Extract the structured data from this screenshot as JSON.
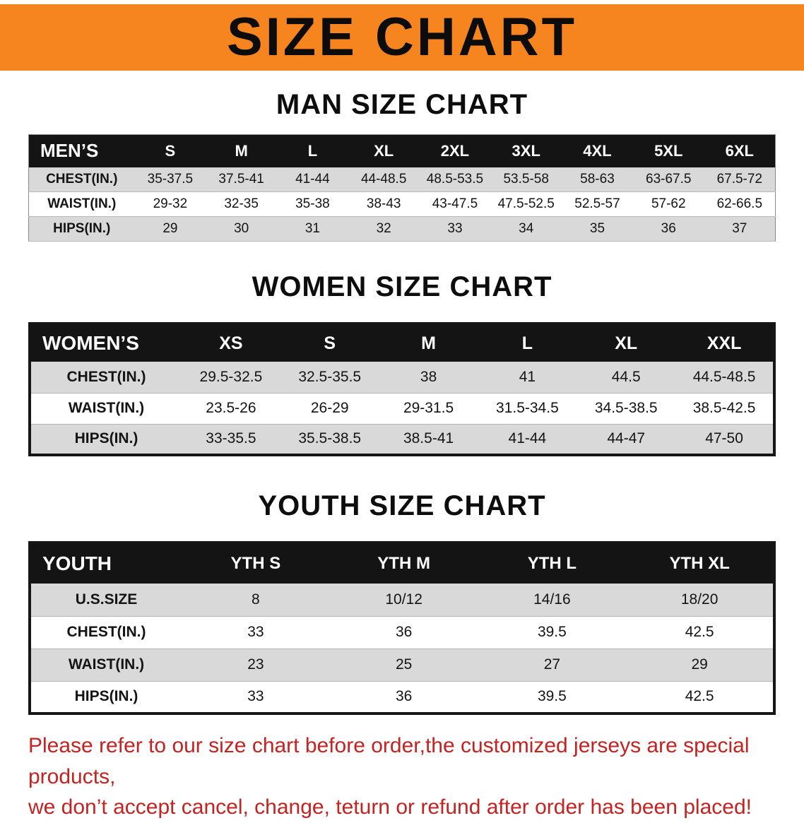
{
  "banner": {
    "title": "SIZE CHART"
  },
  "colors": {
    "banner_bg": "#F6851F",
    "header_bg": "#141414",
    "row_alt": "#d9d9d9",
    "disclaimer": "#c52222"
  },
  "sections": [
    {
      "heading": "MAN SIZE CHART",
      "table": {
        "header": [
          "MEN’S",
          "S",
          "M",
          "L",
          "XL",
          "2XL",
          "3XL",
          "4XL",
          "5XL",
          "6XL"
        ],
        "rows": [
          [
            "CHEST(IN.)",
            "35-37.5",
            "37.5-41",
            "41-44",
            "44-48.5",
            "48.5-53.5",
            "53.5-58",
            "58-63",
            "63-67.5",
            "67.5-72"
          ],
          [
            "WAIST(IN.)",
            "29-32",
            "32-35",
            "35-38",
            "38-43",
            "43-47.5",
            "47.5-52.5",
            "52.5-57",
            "57-62",
            "62-66.5"
          ],
          [
            "HIPS(IN.)",
            "29",
            "30",
            "31",
            "32",
            "33",
            "34",
            "35",
            "36",
            "37"
          ]
        ]
      }
    },
    {
      "heading": "WOMEN SIZE CHART",
      "table": {
        "header": [
          "WOMEN’S",
          "XS",
          "S",
          "M",
          "L",
          "XL",
          "XXL"
        ],
        "rows": [
          [
            "CHEST(IN.)",
            "29.5-32.5",
            "32.5-35.5",
            "38",
            "41",
            "44.5",
            "44.5-48.5"
          ],
          [
            "WAIST(IN.)",
            "23.5-26",
            "26-29",
            "29-31.5",
            "31.5-34.5",
            "34.5-38.5",
            "38.5-42.5"
          ],
          [
            "HIPS(IN.)",
            "33-35.5",
            "35.5-38.5",
            "38.5-41",
            "41-44",
            "44-47",
            "47-50"
          ]
        ]
      }
    },
    {
      "heading": "YOUTH SIZE CHART",
      "table": {
        "header": [
          "YOUTH",
          "YTH S",
          "YTH M",
          "YTH L",
          "YTH XL"
        ],
        "rows": [
          [
            "U.S.SIZE",
            "8",
            "10/12",
            "14/16",
            "18/20"
          ],
          [
            "CHEST(IN.)",
            "33",
            "36",
            "39.5",
            "42.5"
          ],
          [
            "WAIST(IN.)",
            "23",
            "25",
            "27",
            "29"
          ],
          [
            "HIPS(IN.)",
            "33",
            "36",
            "39.5",
            "42.5"
          ]
        ]
      }
    }
  ],
  "disclaimer": {
    "line1": "Please refer to our size chart before order,the customized jerseys are special products,",
    "line2": "we don’t accept cancel, change, teturn or refund after order has been placed!"
  }
}
